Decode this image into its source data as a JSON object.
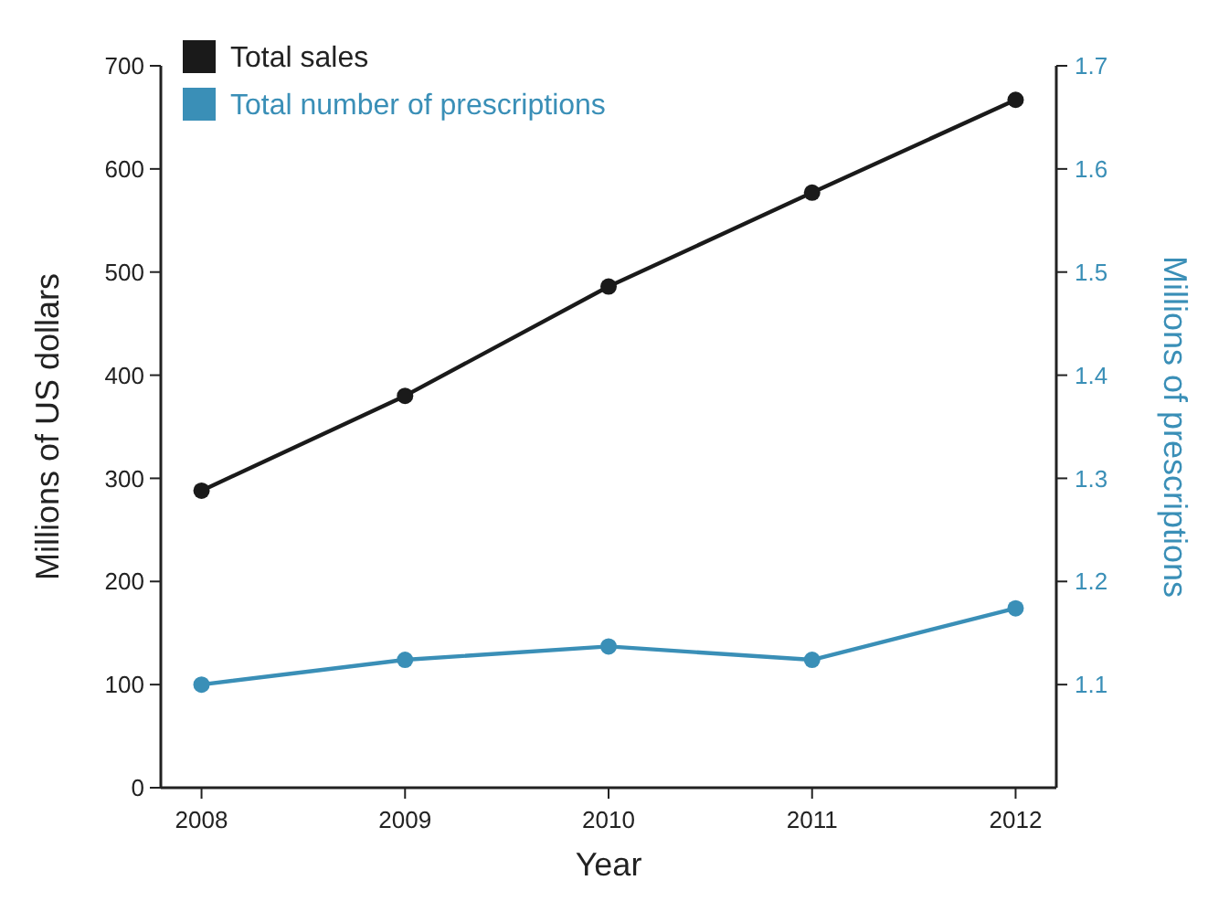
{
  "chart_data": {
    "type": "line",
    "xlabel": "Year",
    "ylabel": "Millions of US dollars",
    "y2label": "Millions of prescriptions",
    "x": [
      2008,
      2009,
      2010,
      2011,
      2012
    ],
    "xlim": [
      2007.8,
      2012.2
    ],
    "xticks": [
      2008,
      2009,
      2010,
      2011,
      2012
    ],
    "ylim": [
      0,
      700
    ],
    "yticks": [
      0,
      100,
      200,
      300,
      400,
      500,
      600,
      700
    ],
    "y2lim": [
      1.0,
      1.7
    ],
    "y2ticks": [
      1.1,
      1.2,
      1.3,
      1.4,
      1.5,
      1.6,
      1.7
    ],
    "series": [
      {
        "name": "Total sales",
        "color": "#1a1a1a",
        "values": [
          288,
          380,
          486,
          577,
          667
        ]
      },
      {
        "name": "Total number of prescriptions",
        "color": "#3a8fb7",
        "axis": "y2",
        "values": [
          1.1,
          1.124,
          1.137,
          1.124,
          1.174
        ]
      }
    ],
    "legend": "top left",
    "marker": "circle",
    "line_style": "solid",
    "grid": false
  }
}
